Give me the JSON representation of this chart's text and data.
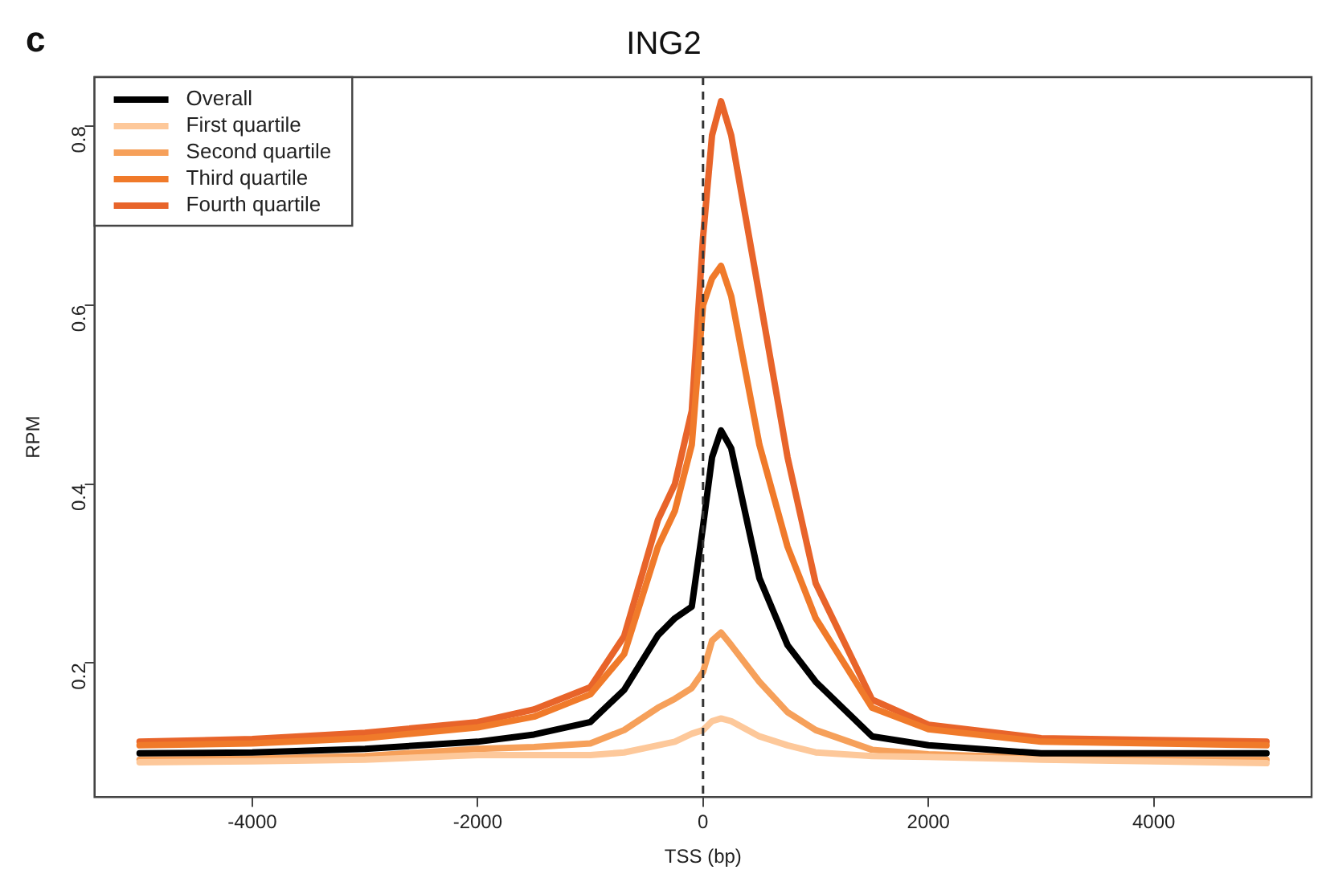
{
  "chart_data": {
    "type": "line",
    "title": "ING2",
    "xlabel": "TSS (bp)",
    "ylabel": "RPM",
    "annotations": [
      "c"
    ],
    "x": [
      -5000,
      -4000,
      -3000,
      -2000,
      -1500,
      -1000,
      -700,
      -400,
      -250,
      -100,
      0,
      80,
      160,
      250,
      500,
      750,
      1000,
      1500,
      2000,
      3000,
      4000,
      5000
    ],
    "series": [
      {
        "name": "Overall",
        "color": "#000000",
        "values": [
          0.099,
          0.1,
          0.104,
          0.112,
          0.12,
          0.134,
          0.17,
          0.231,
          0.25,
          0.263,
          0.353,
          0.43,
          0.46,
          0.44,
          0.295,
          0.22,
          0.179,
          0.118,
          0.108,
          0.099,
          0.099,
          0.099
        ]
      },
      {
        "name": "First quartile",
        "color": "#fdc89a",
        "values": [
          0.089,
          0.09,
          0.092,
          0.097,
          0.097,
          0.097,
          0.1,
          0.108,
          0.112,
          0.121,
          0.125,
          0.135,
          0.138,
          0.135,
          0.118,
          0.108,
          0.1,
          0.096,
          0.095,
          0.092,
          0.09,
          0.088
        ]
      },
      {
        "name": "Second quartile",
        "color": "#f6a05a",
        "values": [
          0.092,
          0.093,
          0.096,
          0.104,
          0.106,
          0.11,
          0.125,
          0.15,
          0.16,
          0.172,
          0.19,
          0.225,
          0.234,
          0.22,
          0.179,
          0.145,
          0.125,
          0.103,
          0.098,
          0.094,
          0.092,
          0.092
        ]
      },
      {
        "name": "Third quartile",
        "color": "#f07a2a",
        "values": [
          0.108,
          0.11,
          0.116,
          0.128,
          0.14,
          0.165,
          0.21,
          0.33,
          0.37,
          0.444,
          0.6,
          0.63,
          0.644,
          0.61,
          0.444,
          0.33,
          0.25,
          0.15,
          0.126,
          0.112,
          0.11,
          0.108
        ]
      },
      {
        "name": "Fourth quartile",
        "color": "#e8642a",
        "values": [
          0.112,
          0.115,
          0.122,
          0.134,
          0.148,
          0.173,
          0.23,
          0.36,
          0.4,
          0.482,
          0.676,
          0.79,
          0.828,
          0.79,
          0.611,
          0.43,
          0.289,
          0.159,
          0.131,
          0.116,
          0.114,
          0.112
        ]
      }
    ],
    "xlim": [
      -5400,
      5400
    ],
    "ylim": [
      0.05,
      0.855
    ],
    "xticks": [
      -4000,
      -2000,
      0,
      2000,
      4000
    ],
    "yticks": [
      0.2,
      0.4,
      0.6,
      0.8
    ],
    "ref_lines": [
      {
        "axis": "x",
        "value": 0,
        "color": "#333333",
        "line_style": "dashed"
      }
    ],
    "grid": false,
    "legend": "top left",
    "marker": "none",
    "line_style": "solid"
  }
}
